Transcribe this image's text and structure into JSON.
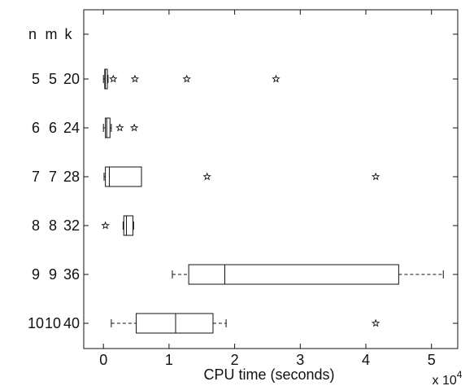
{
  "chart_data": {
    "type": "boxplot",
    "title": "",
    "xlabel": "CPU time (seconds)",
    "x_multiplier_label": "x 10",
    "x_multiplier_exponent": "4",
    "xlim": [
      -0.3,
      5.4
    ],
    "x_unit_scale": 10000,
    "x_ticks": [
      0,
      1,
      2,
      3,
      4,
      5
    ],
    "x_tick_labels": [
      "0",
      "1",
      "2",
      "3",
      "4",
      "5"
    ],
    "row_header_labels": [
      "n",
      "m",
      "k"
    ],
    "rows": [
      {
        "n": "5",
        "m": "5",
        "k": "20",
        "whisker_low": 0.0,
        "q1": 0.02,
        "median": 0.03,
        "q3": 0.06,
        "whisker_high": 0.07,
        "outliers": [
          0.15,
          0.48,
          1.27,
          2.63
        ]
      },
      {
        "n": "6",
        "m": "6",
        "k": "24",
        "whisker_low": 0.0,
        "q1": 0.03,
        "median": 0.05,
        "q3": 0.1,
        "whisker_high": 0.12,
        "outliers": [
          0.25,
          0.47
        ]
      },
      {
        "n": "7",
        "m": "7",
        "k": "28",
        "whisker_low": 0.01,
        "q1": 0.03,
        "median": 0.09,
        "q3": 0.58,
        "whisker_high": 0.58,
        "outliers": [
          1.58,
          4.15
        ]
      },
      {
        "n": "8",
        "m": "8",
        "k": "32",
        "whisker_low": 0.3,
        "q1": 0.31,
        "median": 0.35,
        "q3": 0.45,
        "whisker_high": 0.46,
        "outliers": [
          0.03
        ]
      },
      {
        "n": "9",
        "m": "9",
        "k": "36",
        "whisker_low": 1.05,
        "q1": 1.3,
        "median": 1.85,
        "q3": 4.5,
        "whisker_high": 5.18,
        "outliers": []
      },
      {
        "n": "10",
        "m": "10",
        "k": "40",
        "whisker_low": 0.12,
        "q1": 0.5,
        "median": 1.1,
        "q3": 1.67,
        "whisker_high": 1.87,
        "outliers": [
          4.15
        ]
      }
    ],
    "grid": false,
    "legend": "none",
    "colors": {
      "axis": "#111111",
      "box": "#111111",
      "background": "#ffffff"
    }
  }
}
